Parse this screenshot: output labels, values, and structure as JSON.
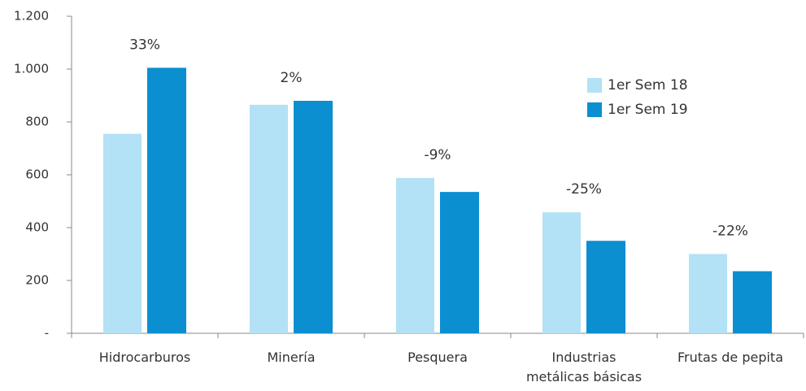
{
  "chart_data": {
    "type": "bar",
    "categories": [
      "Hidrocarburos",
      "Minería",
      "Pesquera",
      "Industrias metálicas básicas",
      "Frutas de pepita"
    ],
    "series": [
      {
        "name": "1er Sem 18",
        "color": "#b3e1f6",
        "values": [
          755,
          865,
          588,
          458,
          300
        ]
      },
      {
        "name": "1er Sem 19",
        "color": "#0b8fd1",
        "values": [
          1005,
          880,
          535,
          350,
          235
        ]
      }
    ],
    "annotations": [
      "33%",
      "2%",
      "-9%",
      "-25%",
      "-22%"
    ],
    "ylim": [
      0,
      1200
    ],
    "yticks": [
      {
        "value": 0,
        "label": "-"
      },
      200,
      400,
      600,
      800,
      {
        "value": 1000,
        "label": "1.000"
      },
      {
        "value": 1200,
        "label": "1.200"
      }
    ],
    "legend": "top-right"
  }
}
